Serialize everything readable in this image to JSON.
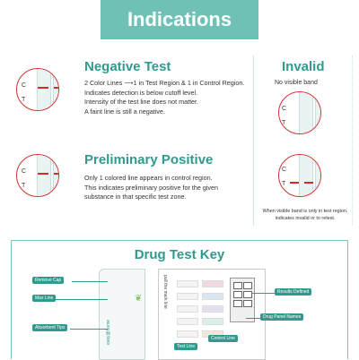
{
  "banner": {
    "title": "Indications"
  },
  "negative": {
    "title": "Negative Test",
    "lines": [
      "2 Color Lines ⟶1 in Test Region & 1 in Control Region.",
      "Indicates detection is below cutoff level.",
      "Intensity of the test line does not matter.",
      "A faint line is still a negative."
    ]
  },
  "preliminary": {
    "title": "Preliminary Positive",
    "lines": [
      "Only 1 colored line appears in control region.",
      "This indicates preliminary positive for the given",
      "substance in that specific test zone."
    ]
  },
  "invalid": {
    "title": "Invalid",
    "subtitle": "No visible band",
    "note_line1": "When visible band is only in test region,",
    "note_line2": "indicates invalid or to retest."
  },
  "labels": {
    "c": "C",
    "t": "T"
  },
  "key": {
    "title": "Drug Test Key",
    "callouts": {
      "remove_cap": "Remove Cap",
      "max_line": "Max Line",
      "absorbent_tips": "Absorbent Tips",
      "test_line": "Test Line",
      "control_line": "Control Line",
      "results_defined": "Results Defined",
      "drug_panel_names": "Drug Panel Names"
    },
    "brand": "easy@home",
    "card_text": "pull the mark line"
  },
  "colors": {
    "accent": "#2f9a8d",
    "banner": "#6fc1b6",
    "band_red": "#d42a2a"
  }
}
